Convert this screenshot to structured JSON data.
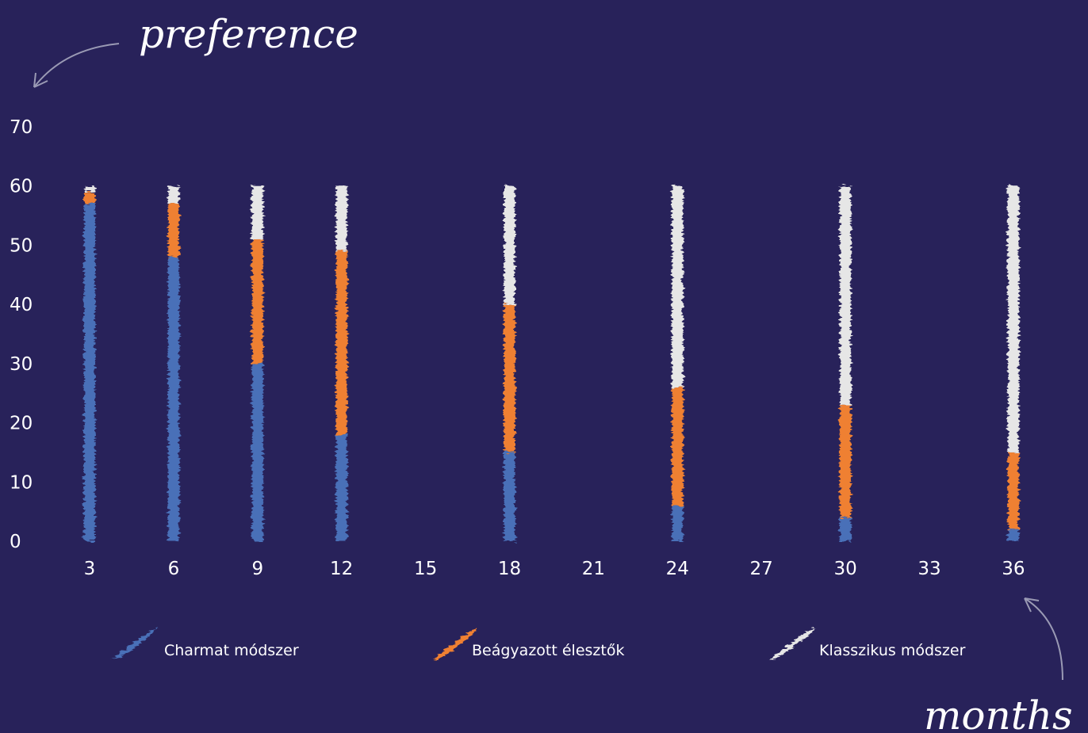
{
  "chart_data": {
    "type": "bar",
    "stacked": true,
    "ylabel": "preference",
    "xlabel": "months",
    "ylim": [
      0,
      70
    ],
    "yticks": [
      0,
      10,
      20,
      30,
      40,
      50,
      60,
      70
    ],
    "xticks": [
      "3",
      "6",
      "9",
      "12",
      "15",
      "18",
      "21",
      "24",
      "27",
      "30",
      "33",
      "36"
    ],
    "grid": true,
    "legend_position": "bottom",
    "categories": [
      "3",
      "6",
      "9",
      "12",
      "18",
      "24",
      "30",
      "36"
    ],
    "series": [
      {
        "name": "Charmat módszer",
        "color": "#4a6fb8",
        "values": [
          57,
          48,
          30,
          18,
          15,
          6,
          4,
          2
        ]
      },
      {
        "name": "Beágyazott élesztők",
        "color": "#ef8030",
        "values": [
          2,
          9,
          21,
          31,
          25,
          20,
          19,
          13
        ]
      },
      {
        "name": "Klasszikus módszer",
        "color": "#e6e6e6",
        "values": [
          1,
          3,
          9,
          11,
          20,
          34,
          37,
          45
        ]
      }
    ]
  }
}
